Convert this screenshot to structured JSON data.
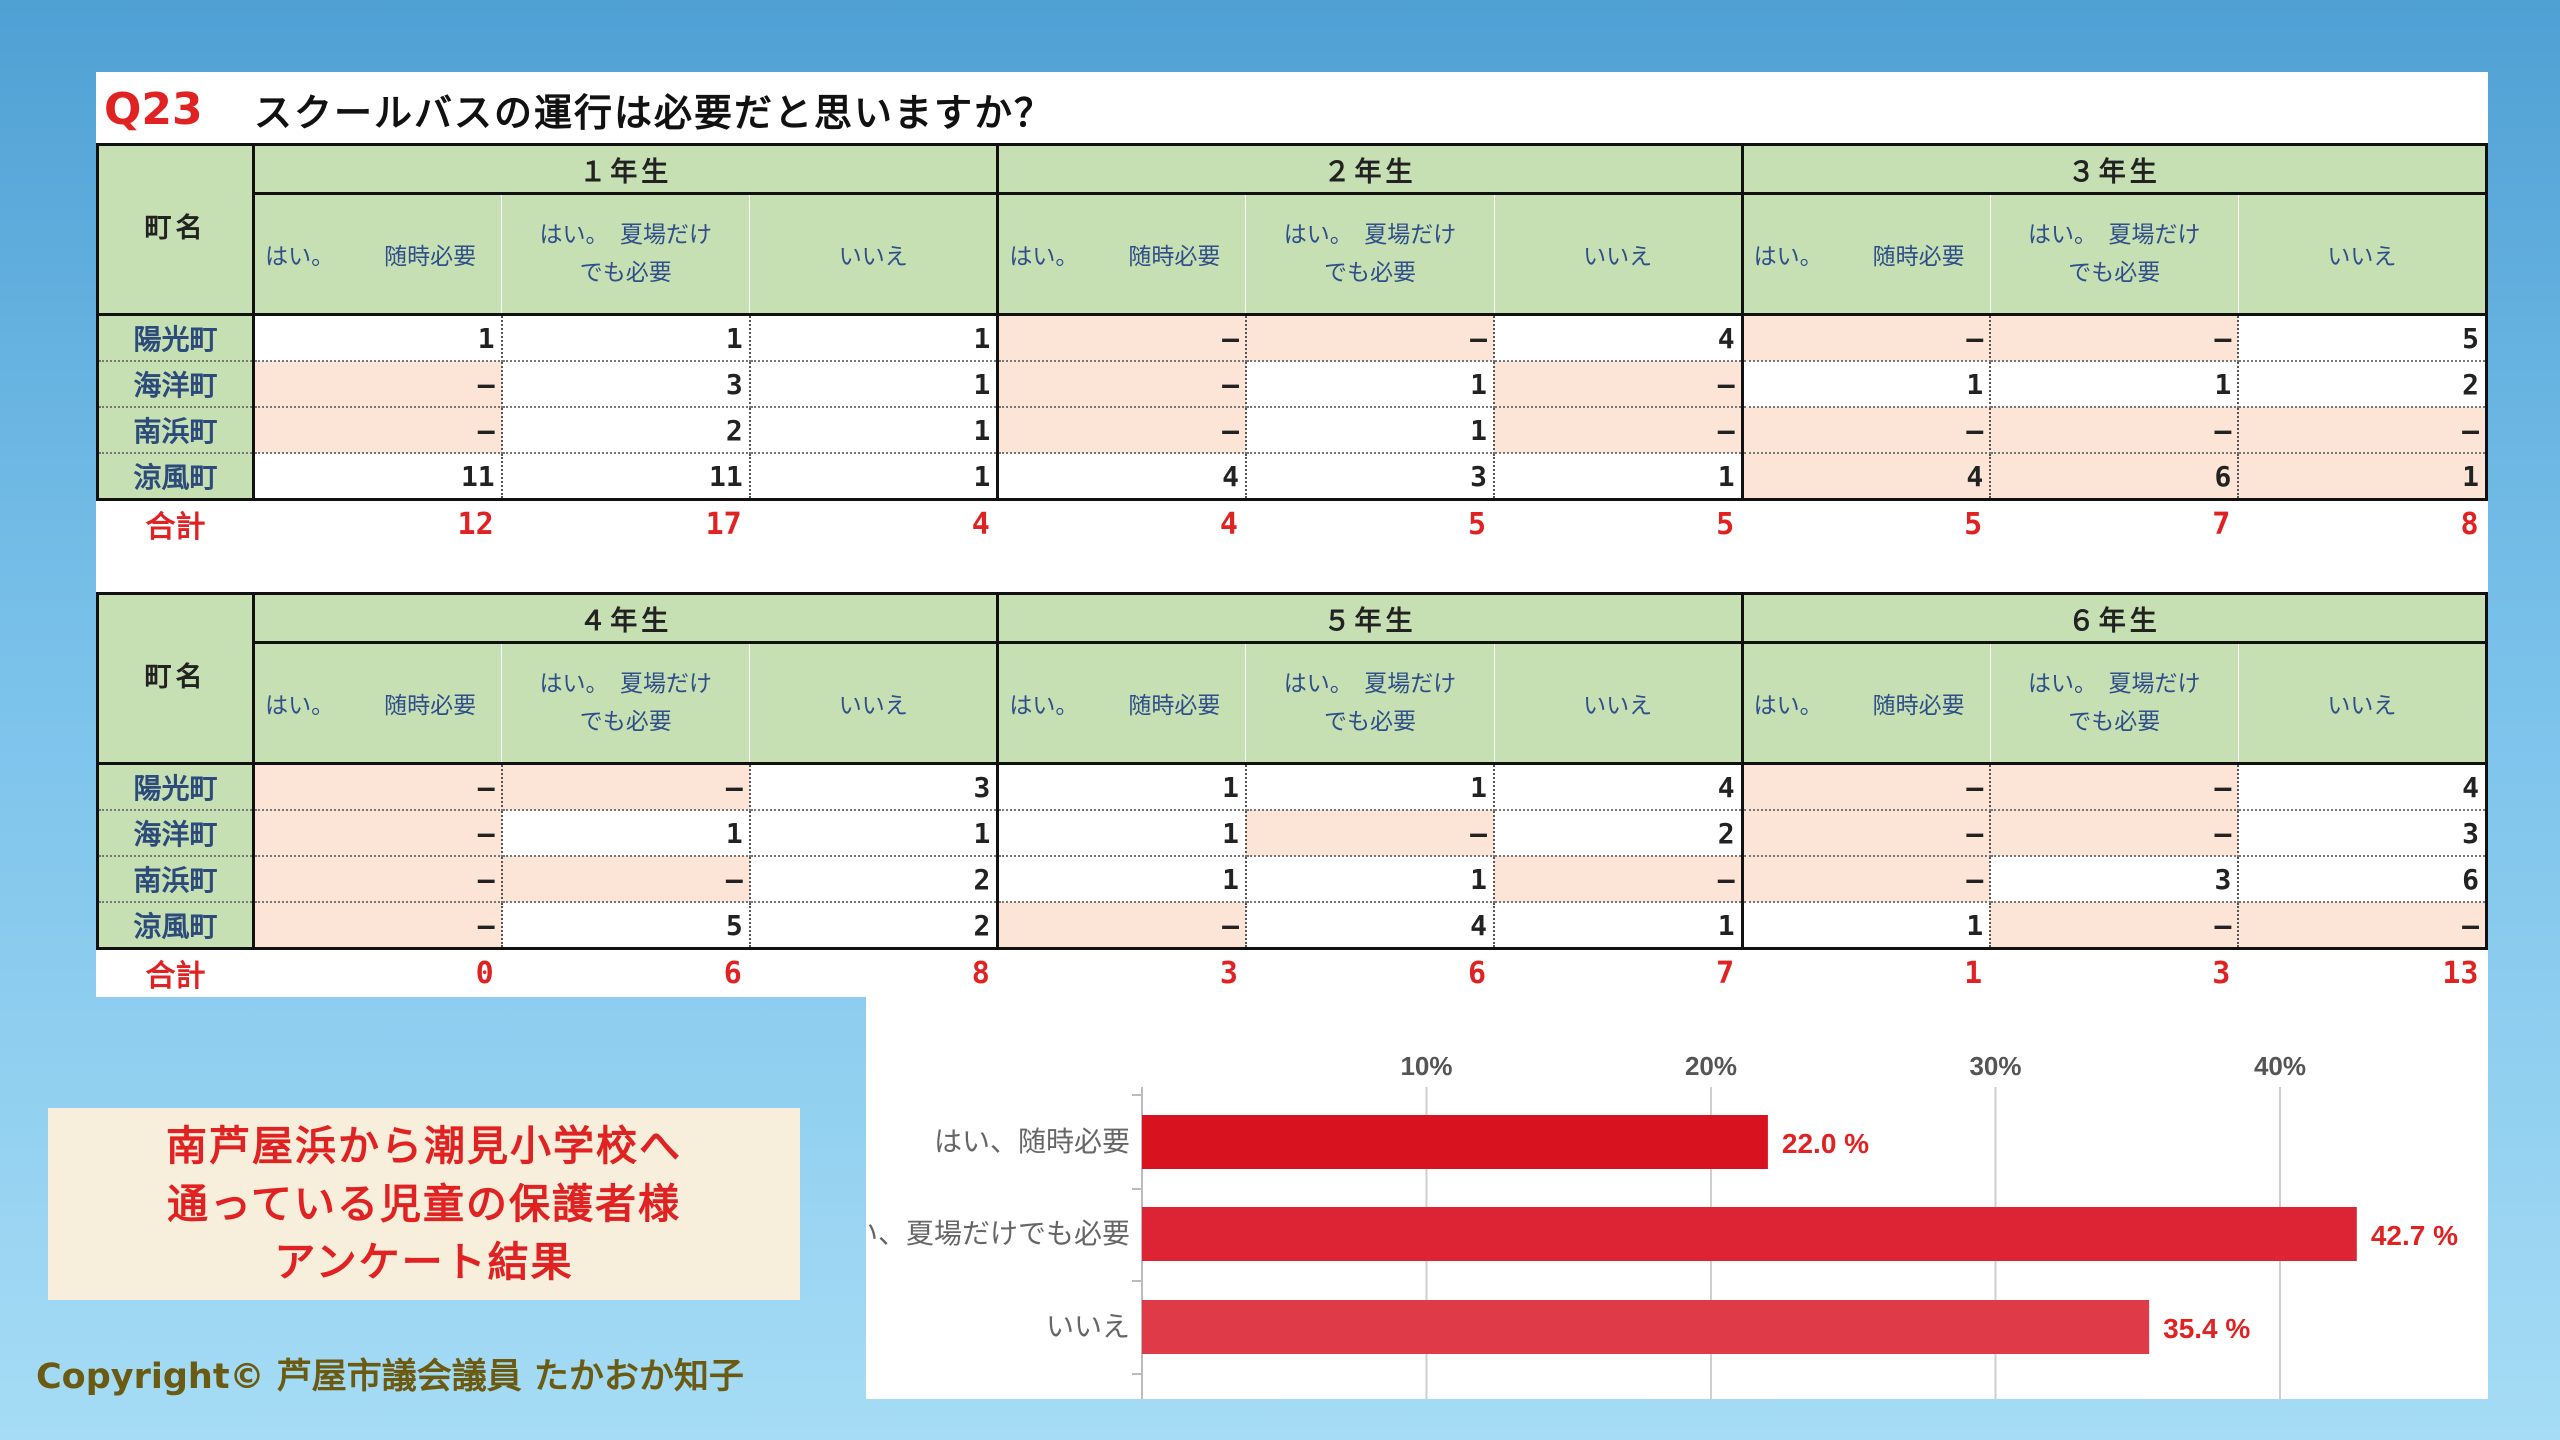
{
  "question": {
    "label": "Q23",
    "text": "スクールバスの運行は必要だと思いますか？"
  },
  "table_labels": {
    "town_header": "町名",
    "option_a": [
      "はい。",
      "随時必要"
    ],
    "option_b": [
      "はい。　夏場だけ",
      "でも必要"
    ],
    "option_c": "いいえ",
    "total": "合計"
  },
  "towns": [
    "陽光町",
    "海洋町",
    "南浜町",
    "涼風町"
  ],
  "tables": [
    {
      "grades": [
        {
          "name": "１年生",
          "rows": [
            [
              "1",
              "1",
              "1"
            ],
            [
              "—",
              "3",
              "1"
            ],
            [
              "—",
              "2",
              "1"
            ],
            [
              "11",
              "11",
              "1"
            ]
          ],
          "shade": [
            [
              "w",
              "w",
              "w"
            ],
            [
              "p",
              "w",
              "w"
            ],
            [
              "p",
              "w",
              "w"
            ],
            [
              "w",
              "w",
              "w"
            ]
          ],
          "totals": [
            "12",
            "17",
            "4"
          ]
        },
        {
          "name": "２年生",
          "rows": [
            [
              "—",
              "—",
              "4"
            ],
            [
              "—",
              "1",
              "—"
            ],
            [
              "—",
              "1",
              "—"
            ],
            [
              "4",
              "3",
              "1"
            ]
          ],
          "shade": [
            [
              "p",
              "p",
              "w"
            ],
            [
              "p",
              "w",
              "p"
            ],
            [
              "p",
              "w",
              "p"
            ],
            [
              "w",
              "w",
              "w"
            ]
          ],
          "totals": [
            "4",
            "5",
            "5"
          ]
        },
        {
          "name": "３年生",
          "rows": [
            [
              "—",
              "—",
              "5"
            ],
            [
              "1",
              "1",
              "2"
            ],
            [
              "—",
              "—",
              "—"
            ],
            [
              "4",
              "6",
              "1"
            ]
          ],
          "shade": [
            [
              "p",
              "p",
              "w"
            ],
            [
              "w",
              "w",
              "w"
            ],
            [
              "p",
              "p",
              "p"
            ],
            [
              "p",
              "p",
              "p"
            ]
          ],
          "totals": [
            "5",
            "7",
            "8"
          ]
        }
      ]
    },
    {
      "grades": [
        {
          "name": "４年生",
          "rows": [
            [
              "—",
              "—",
              "3"
            ],
            [
              "—",
              "1",
              "1"
            ],
            [
              "—",
              "—",
              "2"
            ],
            [
              "—",
              "5",
              "2"
            ]
          ],
          "shade": [
            [
              "p",
              "p",
              "w"
            ],
            [
              "p",
              "w",
              "w"
            ],
            [
              "p",
              "p",
              "w"
            ],
            [
              "p",
              "w",
              "w"
            ]
          ],
          "totals": [
            "0",
            "6",
            "8"
          ]
        },
        {
          "name": "５年生",
          "rows": [
            [
              "1",
              "1",
              "4"
            ],
            [
              "1",
              "—",
              "2"
            ],
            [
              "1",
              "1",
              "—"
            ],
            [
              "—",
              "4",
              "1"
            ]
          ],
          "shade": [
            [
              "w",
              "w",
              "w"
            ],
            [
              "w",
              "p",
              "w"
            ],
            [
              "w",
              "w",
              "p"
            ],
            [
              "p",
              "w",
              "w"
            ]
          ],
          "totals": [
            "3",
            "6",
            "7"
          ]
        },
        {
          "name": "６年生",
          "rows": [
            [
              "—",
              "—",
              "4"
            ],
            [
              "—",
              "—",
              "3"
            ],
            [
              "—",
              "3",
              "6"
            ],
            [
              "1",
              "—",
              "—"
            ]
          ],
          "shade": [
            [
              "p",
              "p",
              "w"
            ],
            [
              "p",
              "p",
              "w"
            ],
            [
              "p",
              "w",
              "w"
            ],
            [
              "w",
              "p",
              "p"
            ]
          ],
          "totals": [
            "1",
            "3",
            "13"
          ]
        }
      ]
    }
  ],
  "caption": [
    "南芦屋浜から潮見小学校へ",
    "通っている児童の保護者様",
    "アンケート結果"
  ],
  "copyright": "Copyright© 芦屋市議会議員 たかおか知子",
  "colors": {
    "accent_red": "#e02222",
    "header_green": "#c6e0b4",
    "shade_pink": "#fce4d6"
  },
  "chart_data": {
    "type": "bar",
    "orientation": "horizontal",
    "categories": [
      "はい、随時必要",
      "はい、夏場だけでも必要",
      "いいえ"
    ],
    "values": [
      22.0,
      42.7,
      35.4
    ],
    "value_labels": [
      "22.0 %",
      "42.7 %",
      "35.4 %"
    ],
    "xticks": [
      "10%",
      "20%",
      "30%",
      "40%"
    ],
    "xlim": [
      0,
      45
    ],
    "grid": true,
    "bar_colors": [
      "#d9121f",
      "#dc2434",
      "#df3a47"
    ]
  }
}
